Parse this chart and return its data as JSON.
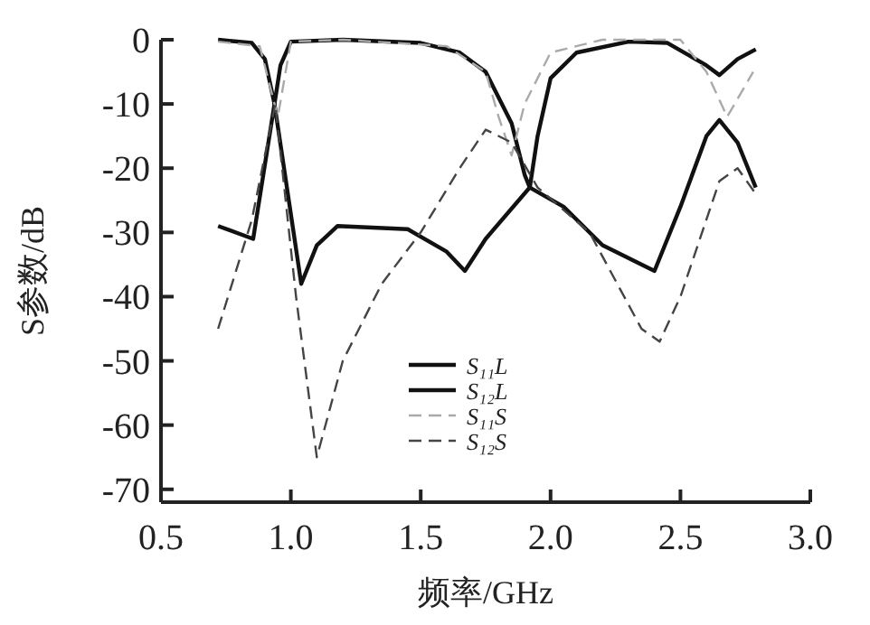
{
  "chart_data": {
    "type": "line",
    "xlabel": "频率/GHz",
    "ylabel": "S参数/dB",
    "xlim": [
      0.5,
      3.0
    ],
    "ylim": [
      -72,
      0
    ],
    "xticks": [
      {
        "value": 0.5,
        "label": "0.5"
      },
      {
        "value": 1.0,
        "label": "1.0"
      },
      {
        "value": 1.5,
        "label": "1.5"
      },
      {
        "value": 2.0,
        "label": "2.0"
      },
      {
        "value": 2.5,
        "label": "2.5"
      },
      {
        "value": 3.0,
        "label": "3.0"
      }
    ],
    "yticks": [
      0,
      -10,
      -20,
      -30,
      -40,
      -50,
      -60,
      -70
    ],
    "grid": false,
    "legend": "bottom",
    "marker": "none",
    "series": [
      {
        "name": "S₁₁L",
        "color": "#111111",
        "line_style": "solid",
        "x": [
          0.72,
          0.85,
          0.9,
          0.937,
          0.96,
          1.0,
          1.2,
          1.5,
          1.65,
          1.75,
          1.85,
          1.9,
          1.92,
          1.95,
          2.0,
          2.1,
          2.3,
          2.45,
          2.6,
          2.65,
          2.72,
          2.79
        ],
        "values": [
          0,
          -0.5,
          -3,
          -10,
          -4,
          -0.3,
          0,
          -0.5,
          -2,
          -5,
          -13,
          -21,
          -23,
          -15,
          -6,
          -2,
          -0.3,
          -0.5,
          -4,
          -5.5,
          -3,
          -1.5
        ]
      },
      {
        "name": "S₁₂L",
        "color": "#111111",
        "line_style": "solid",
        "x": [
          0.72,
          0.855,
          0.937,
          1.04,
          1.1,
          1.18,
          1.45,
          1.6,
          1.67,
          1.75,
          1.92,
          2.05,
          2.2,
          2.4,
          2.5,
          2.6,
          2.65,
          2.72,
          2.79
        ],
        "values": [
          -29,
          -31,
          -10,
          -38,
          -32,
          -29,
          -29.5,
          -33,
          -36,
          -31,
          -23,
          -26,
          -32,
          -36,
          -26,
          -15,
          -12.5,
          -16,
          -23
        ]
      },
      {
        "name": "S₁₁S",
        "color": "#aaaaaa",
        "line_style": "dashed",
        "x": [
          0.72,
          0.88,
          0.95,
          1.0,
          1.2,
          1.6,
          1.75,
          1.8,
          1.85,
          1.9,
          2.0,
          2.2,
          2.5,
          2.6,
          2.68,
          2.78
        ],
        "values": [
          -0.3,
          -1,
          -12,
          -0.3,
          0,
          -1,
          -5,
          -12,
          -18,
          -10,
          -2,
          0,
          0,
          -5,
          -12,
          -5
        ]
      },
      {
        "name": "S₁₂S",
        "color": "#444444",
        "line_style": "dashed",
        "x": [
          0.72,
          0.85,
          0.94,
          1.02,
          1.1,
          1.2,
          1.35,
          1.5,
          1.65,
          1.75,
          1.85,
          1.95,
          2.15,
          2.35,
          2.42,
          2.5,
          2.65,
          2.72,
          2.79
        ],
        "values": [
          -45,
          -28,
          -10,
          -40,
          -65,
          -50,
          -38,
          -30,
          -20,
          -14,
          -16,
          -23,
          -30,
          -45,
          -47,
          -40,
          -22,
          -20,
          -24
        ]
      }
    ]
  }
}
